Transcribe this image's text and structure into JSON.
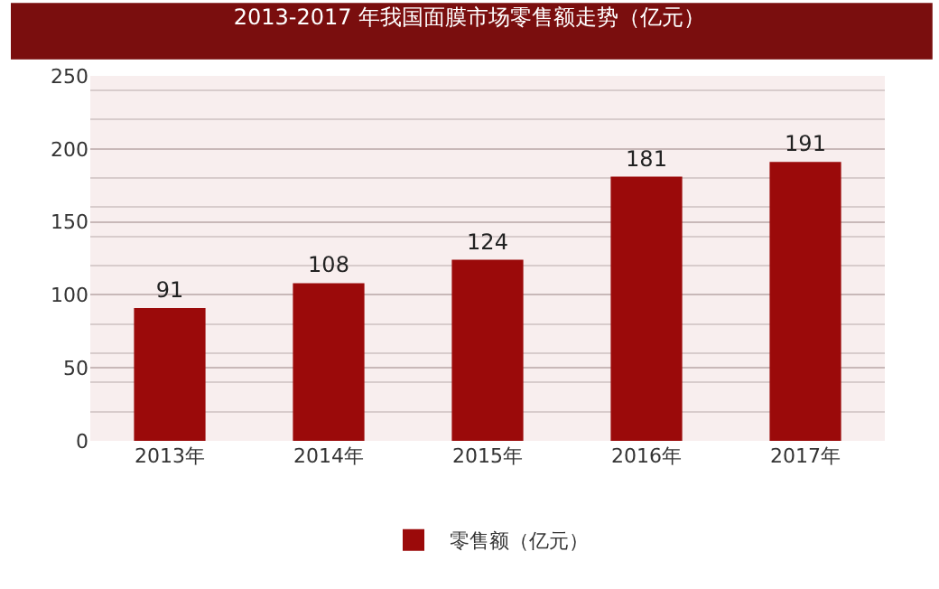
{
  "chart_data": {
    "type": "bar",
    "title": "2013-2017 年我国面膜市场零售额走势（亿元）",
    "categories": [
      "2013年",
      "2014年",
      "2015年",
      "2016年",
      "2017年"
    ],
    "series": [
      {
        "name": "零售额（亿元）",
        "color": "#9b0a0a",
        "values": [
          91,
          108,
          124,
          181,
          191
        ]
      }
    ],
    "ylim": [
      0,
      250
    ],
    "yticks": [
      0,
      50,
      100,
      150,
      200,
      250
    ],
    "grid": "y",
    "data_labels": true,
    "legend": "bottom"
  }
}
